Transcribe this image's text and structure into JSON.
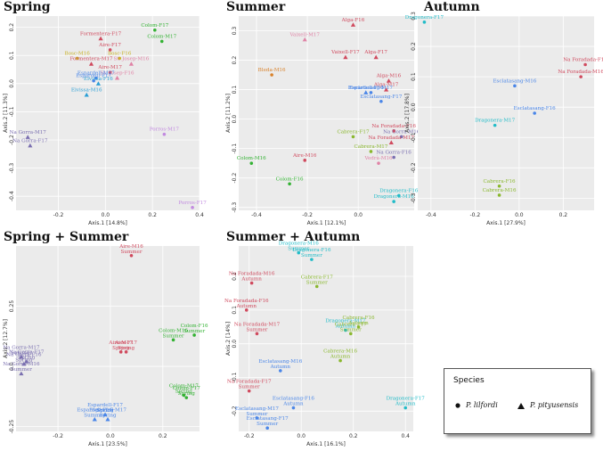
{
  "legend": {
    "title": "Species",
    "items": [
      {
        "marker": "circle",
        "label": "P. lilfordi"
      },
      {
        "marker": "triangle",
        "label": "P. pityusensis"
      }
    ]
  },
  "chart_data": [
    {
      "type": "scatter",
      "title": "Spring",
      "xlabel": "Axis.1",
      "xpct": "[14.8%]",
      "ylabel": "Axis.2",
      "ypct": "[11.3%]",
      "xlim": [
        -0.38,
        0.4
      ],
      "ylim": [
        -0.45,
        0.24
      ],
      "xticks": [
        -0.2,
        0.0,
        0.2,
        0.4
      ],
      "yticks": [
        0.2,
        0.1,
        0.0,
        -0.1,
        -0.2,
        -0.3,
        -0.4
      ],
      "points": [
        {
          "label": "Formentera-F17",
          "x": -0.02,
          "y": 0.16,
          "marker": "triangle",
          "color": "#d04a5e"
        },
        {
          "label": "Colom-F17",
          "x": 0.21,
          "y": 0.19,
          "marker": "circle",
          "color": "#33b233"
        },
        {
          "label": "Colom-M17",
          "x": 0.24,
          "y": 0.15,
          "marker": "circle",
          "color": "#33b233"
        },
        {
          "label": "Aire-F17",
          "x": 0.02,
          "y": 0.12,
          "marker": "circle",
          "color": "#d04a5e"
        },
        {
          "label": "Bosc-M16",
          "x": -0.12,
          "y": 0.09,
          "marker": "circle",
          "color": "#c9b225"
        },
        {
          "label": "Bosc-F16",
          "x": 0.06,
          "y": 0.09,
          "marker": "circle",
          "color": "#c9b225"
        },
        {
          "label": "Formentera-M17",
          "x": -0.06,
          "y": 0.07,
          "marker": "triangle",
          "color": "#d04a5e"
        },
        {
          "label": "St. Josep-M16",
          "x": 0.11,
          "y": 0.07,
          "marker": "triangle",
          "color": "#e083a6"
        },
        {
          "label": "Aire-M17",
          "x": 0.02,
          "y": 0.04,
          "marker": "circle",
          "color": "#d04a5e"
        },
        {
          "label": "St. Josep-F16",
          "x": 0.05,
          "y": 0.02,
          "marker": "triangle",
          "color": "#e083a6"
        },
        {
          "label": "Espardell-M17",
          "x": -0.04,
          "y": 0.02,
          "marker": "circle",
          "color": "#4a86e8"
        },
        {
          "label": "Espardell-F17",
          "x": -0.05,
          "y": 0.01,
          "marker": "circle",
          "color": "#4a86e8"
        },
        {
          "label": "Eivissa-F16",
          "x": -0.03,
          "y": 0.0,
          "marker": "triangle",
          "color": "#2a9fd6"
        },
        {
          "label": "Eivissa-M16",
          "x": -0.08,
          "y": -0.04,
          "marker": "triangle",
          "color": "#2a9fd6"
        },
        {
          "label": "Na Gorra-M17",
          "x": -0.33,
          "y": -0.19,
          "marker": "triangle",
          "color": "#7a6fb0"
        },
        {
          "label": "Na Gorra-F17",
          "x": -0.32,
          "y": -0.22,
          "marker": "triangle",
          "color": "#7a6fb0"
        },
        {
          "label": "Porros-M17",
          "x": 0.25,
          "y": -0.18,
          "marker": "circle",
          "color": "#c28ae0"
        },
        {
          "label": "Porros-F17",
          "x": 0.37,
          "y": -0.44,
          "marker": "circle",
          "color": "#c28ae0"
        }
      ]
    },
    {
      "type": "scatter",
      "title": "Summer",
      "xlabel": "Axis.1",
      "xpct": "[12.1%]",
      "ylabel": "Axis.2",
      "ypct": "[11.2%]",
      "xlim": [
        -0.47,
        0.22
      ],
      "ylim": [
        -0.31,
        0.35
      ],
      "xticks": [
        -0.4,
        -0.2,
        0.0
      ],
      "yticks": [
        0.3,
        0.2,
        0.1,
        0.0,
        -0.1,
        -0.2,
        -0.3
      ],
      "points": [
        {
          "label": "Alga-F16",
          "x": -0.02,
          "y": 0.32,
          "marker": "triangle",
          "color": "#d04a5e"
        },
        {
          "label": "Vaixell-M17",
          "x": -0.21,
          "y": 0.27,
          "marker": "triangle",
          "color": "#e083a6"
        },
        {
          "label": "Vaixell-F17",
          "x": -0.05,
          "y": 0.21,
          "marker": "triangle",
          "color": "#d04a5e"
        },
        {
          "label": "Alga-F17",
          "x": 0.07,
          "y": 0.21,
          "marker": "triangle",
          "color": "#d04a5e"
        },
        {
          "label": "Bleda-M16",
          "x": -0.34,
          "y": 0.15,
          "marker": "circle",
          "color": "#d9822b"
        },
        {
          "label": "Alga-M16",
          "x": 0.12,
          "y": 0.13,
          "marker": "triangle",
          "color": "#d04a5e"
        },
        {
          "label": "Alga-M17",
          "x": 0.11,
          "y": 0.1,
          "marker": "triangle",
          "color": "#d04a5e"
        },
        {
          "label": "Espardell-F16",
          "x": 0.03,
          "y": 0.09,
          "marker": "triangle",
          "color": "#4a86e8"
        },
        {
          "label": "Esclatasang-M17",
          "x": 0.05,
          "y": 0.09,
          "marker": "circle",
          "color": "#4a86e8"
        },
        {
          "label": "Esclatasang-F17",
          "x": 0.09,
          "y": 0.06,
          "marker": "circle",
          "color": "#4a86e8"
        },
        {
          "label": "Na Foradada-F16",
          "x": 0.14,
          "y": -0.04,
          "marker": "circle",
          "color": "#d04a5e"
        },
        {
          "label": "Na Gorra-M16",
          "x": 0.17,
          "y": -0.06,
          "marker": "circle",
          "color": "#7a6fb0"
        },
        {
          "label": "Na Foradada-M17",
          "x": 0.13,
          "y": -0.08,
          "marker": "triangle",
          "color": "#d04a5e"
        },
        {
          "label": "Cabrera-F17",
          "x": -0.02,
          "y": -0.06,
          "marker": "circle",
          "color": "#8ab82e"
        },
        {
          "label": "Aire-M16",
          "x": -0.21,
          "y": -0.14,
          "marker": "circle",
          "color": "#d04a5e"
        },
        {
          "label": "Cabrera-M17",
          "x": 0.05,
          "y": -0.11,
          "marker": "circle",
          "color": "#8ab82e"
        },
        {
          "label": "Na Gorra-F16",
          "x": 0.14,
          "y": -0.13,
          "marker": "circle",
          "color": "#7a6fb0"
        },
        {
          "label": "Vedrà-M16",
          "x": 0.08,
          "y": -0.15,
          "marker": "circle",
          "color": "#e083a6"
        },
        {
          "label": "Colom-M16",
          "x": -0.42,
          "y": -0.15,
          "marker": "circle",
          "color": "#33b233"
        },
        {
          "label": "Colom-F16",
          "x": -0.27,
          "y": -0.22,
          "marker": "circle",
          "color": "#33b233"
        },
        {
          "label": "Dragonera-F16",
          "x": 0.16,
          "y": -0.26,
          "marker": "circle",
          "color": "#22bcc8"
        },
        {
          "label": "Dragonera-M16",
          "x": 0.14,
          "y": -0.28,
          "marker": "circle",
          "color": "#22bcc8"
        }
      ]
    },
    {
      "type": "scatter",
      "title": "Autumn",
      "xlabel": "Axis.1",
      "xpct": "[27.9%]",
      "ylabel": "Axis.2",
      "ypct": "[17.8%]",
      "xlim": [
        -0.46,
        0.34
      ],
      "ylim": [
        -0.34,
        0.3
      ],
      "xticks": [
        -0.4,
        -0.2,
        0.0,
        0.2
      ],
      "yticks": [
        0.3,
        0.2,
        0.1,
        0.0,
        -0.1,
        -0.2,
        -0.3
      ],
      "points": [
        {
          "label": "Dragonera-F17",
          "x": -0.43,
          "y": 0.28,
          "marker": "circle",
          "color": "#22bcc8"
        },
        {
          "label": "Na Foradada-F16",
          "x": 0.3,
          "y": 0.14,
          "marker": "circle",
          "color": "#d04a5e"
        },
        {
          "label": "Na Foradada-M16",
          "x": 0.28,
          "y": 0.1,
          "marker": "circle",
          "color": "#d04a5e"
        },
        {
          "label": "Esclatasang-M16",
          "x": -0.02,
          "y": 0.07,
          "marker": "circle",
          "color": "#4a86e8"
        },
        {
          "label": "Esclatasang-F16",
          "x": 0.07,
          "y": -0.02,
          "marker": "circle",
          "color": "#4a86e8"
        },
        {
          "label": "Dragonera-M17",
          "x": -0.11,
          "y": -0.06,
          "marker": "circle",
          "color": "#22bcc8"
        },
        {
          "label": "Cabrera-F16",
          "x": -0.09,
          "y": -0.26,
          "marker": "circle",
          "color": "#8ab82e"
        },
        {
          "label": "Cabrera-M16",
          "x": -0.09,
          "y": -0.29,
          "marker": "circle",
          "color": "#8ab82e"
        }
      ]
    },
    {
      "type": "scatter",
      "title": "Spring + Summer",
      "xlabel": "Axis.1",
      "xpct": "[23.5%]",
      "ylabel": "Axis.2",
      "ypct": "[12.7%]",
      "xlim": [
        -0.36,
        0.34
      ],
      "ylim": [
        -0.27,
        0.5
      ],
      "xticks": [
        -0.2,
        0.0,
        0.2
      ],
      "yticks": [
        0.25,
        0.0,
        -0.25
      ],
      "points": [
        {
          "label": "Aire-M16 Summer",
          "x": 0.08,
          "y": 0.46,
          "marker": "circle",
          "color": "#d04a5e"
        },
        {
          "label": "Na Gorra-M17 Summer",
          "x": -0.34,
          "y": 0.04,
          "marker": "triangle",
          "color": "#7a6fb0"
        },
        {
          "label": "Na Gorra-F17 Spring",
          "x": -0.32,
          "y": 0.02,
          "marker": "triangle",
          "color": "#7a6fb0"
        },
        {
          "label": "Na Gorra-F16 Spring",
          "x": -0.33,
          "y": 0.01,
          "marker": "triangle",
          "color": "#7a6fb0"
        },
        {
          "label": "Na Gorra-M16 Summer",
          "x": -0.34,
          "y": -0.03,
          "marker": "triangle",
          "color": "#7a6fb0"
        },
        {
          "label": "Aire-M17 Spring",
          "x": 0.04,
          "y": 0.06,
          "marker": "circle",
          "color": "#d04a5e"
        },
        {
          "label": "Aire-F17 Spring",
          "x": 0.06,
          "y": 0.06,
          "marker": "circle",
          "color": "#d04a5e"
        },
        {
          "label": "Colom-F16 Summer",
          "x": 0.32,
          "y": 0.13,
          "marker": "circle",
          "color": "#33b233"
        },
        {
          "label": "Colom-M16 Summer",
          "x": 0.24,
          "y": 0.11,
          "marker": "circle",
          "color": "#33b233"
        },
        {
          "label": "Colom-M17 Spring",
          "x": 0.28,
          "y": -0.12,
          "marker": "circle",
          "color": "#33b233"
        },
        {
          "label": "Colom-F17 Spring",
          "x": 0.29,
          "y": -0.13,
          "marker": "circle",
          "color": "#33b233"
        },
        {
          "label": "Espardell-F17 Spring",
          "x": -0.02,
          "y": -0.2,
          "marker": "triangle",
          "color": "#4a86e8"
        },
        {
          "label": "Espardell-F16 Summer",
          "x": -0.06,
          "y": -0.22,
          "marker": "triangle",
          "color": "#4a86e8"
        },
        {
          "label": "Espardell-M17 Spring",
          "x": -0.01,
          "y": -0.22,
          "marker": "triangle",
          "color": "#4a86e8"
        }
      ]
    },
    {
      "type": "scatter",
      "title": "Summer + Autumn",
      "xlabel": "Axis.1",
      "xpct": "[16.1%]",
      "ylabel": "Axis.2",
      "ypct": "[14%]",
      "xlim": [
        -0.24,
        0.43
      ],
      "ylim": [
        -0.26,
        0.29
      ],
      "xticks": [
        -0.2,
        0.0,
        0.2,
        0.4
      ],
      "yticks": [
        0.2,
        0.1,
        0.0,
        -0.1,
        -0.2
      ],
      "points": [
        {
          "label": "Dragonera-M16 Summer",
          "x": -0.01,
          "y": 0.27,
          "marker": "circle",
          "color": "#22bcc8"
        },
        {
          "label": "Dragonera-F16 Summer",
          "x": 0.04,
          "y": 0.25,
          "marker": "circle",
          "color": "#22bcc8"
        },
        {
          "label": "Na Foradada-M16 Autumn",
          "x": -0.19,
          "y": 0.18,
          "marker": "circle",
          "color": "#d04a5e"
        },
        {
          "label": "Cabrera-F17 Summer",
          "x": 0.06,
          "y": 0.17,
          "marker": "circle",
          "color": "#8ab82e"
        },
        {
          "label": "Na Foradada-F16 Autumn",
          "x": -0.21,
          "y": 0.1,
          "marker": "circle",
          "color": "#d04a5e"
        },
        {
          "label": "Na Foradada-M17 Summer",
          "x": -0.17,
          "y": 0.03,
          "marker": "circle",
          "color": "#d04a5e"
        },
        {
          "label": "Dragonera-M17 Autumn",
          "x": 0.17,
          "y": 0.04,
          "marker": "circle",
          "color": "#22bcc8"
        },
        {
          "label": "Cabrera-F16 Autumn",
          "x": 0.22,
          "y": 0.05,
          "marker": "circle",
          "color": "#8ab82e"
        },
        {
          "label": "Cabrera-F17 Summer",
          "x": 0.19,
          "y": 0.03,
          "marker": "circle",
          "color": "#8ab82e"
        },
        {
          "label": "Cabrera-M16 Autumn",
          "x": 0.15,
          "y": -0.05,
          "marker": "circle",
          "color": "#8ab82e"
        },
        {
          "label": "Esclatasang-M16 Autumn",
          "x": -0.08,
          "y": -0.08,
          "marker": "circle",
          "color": "#4a86e8"
        },
        {
          "label": "Na Foradada-F17 Summer",
          "x": -0.2,
          "y": -0.14,
          "marker": "circle",
          "color": "#d04a5e"
        },
        {
          "label": "Esclatasang-M17 Summer",
          "x": -0.17,
          "y": -0.22,
          "marker": "circle",
          "color": "#4a86e8"
        },
        {
          "label": "Esclatasang-F16 Autumn",
          "x": -0.03,
          "y": -0.19,
          "marker": "circle",
          "color": "#4a86e8"
        },
        {
          "label": "Esclatasang-F17 Summer",
          "x": -0.13,
          "y": -0.25,
          "marker": "circle",
          "color": "#4a86e8"
        },
        {
          "label": "Dragonera-F17 Autumn",
          "x": 0.4,
          "y": -0.19,
          "marker": "circle",
          "color": "#22bcc8"
        }
      ]
    }
  ]
}
